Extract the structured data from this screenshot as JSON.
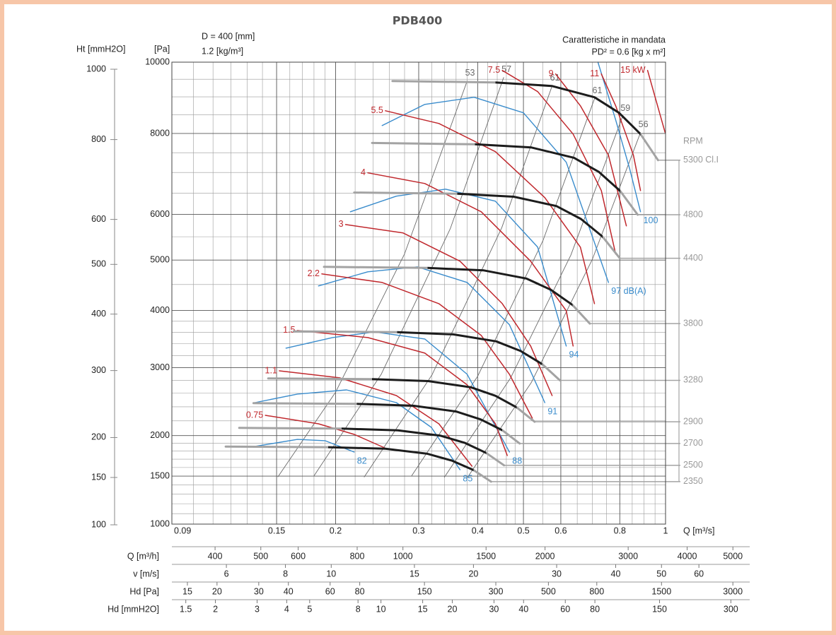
{
  "chart_data": {
    "type": "line",
    "title": "PDB400",
    "notes_left": [
      "D = 400 [mm]",
      "1.2 [kg/m³]"
    ],
    "notes_right": [
      "Caratteristiche in mandata",
      "PD² = 0.6 [kg x m²]"
    ],
    "xlabel": "Q [m³/s]",
    "ylabel": "[Pa]",
    "y2label": "Ht [mmH2O]",
    "rpm_label": "RPM",
    "xscale": "log",
    "yscale": "sqrt",
    "grid": true,
    "xlim": [
      0.09,
      1
    ],
    "ylim": [
      1000,
      10000
    ],
    "y2lim": [
      100,
      1000
    ],
    "xticks": [
      0.09,
      0.15,
      0.2,
      0.3,
      0.4,
      0.5,
      0.6,
      0.8,
      1
    ],
    "yticks": [
      1000,
      1500,
      2000,
      3000,
      4000,
      5000,
      6000,
      8000,
      10000
    ],
    "y2ticks": [
      100,
      150,
      200,
      300,
      400,
      500,
      600,
      800,
      1000
    ],
    "xgrid": [
      0.1,
      0.11,
      0.12,
      0.13,
      0.14,
      0.16,
      0.17,
      0.18,
      0.19,
      0.22,
      0.24,
      0.26,
      0.28,
      0.32,
      0.34,
      0.36,
      0.38,
      0.42,
      0.44,
      0.46,
      0.48,
      0.55,
      0.65,
      0.7,
      0.75,
      0.85,
      0.9,
      0.95
    ],
    "ygrid": [
      1100,
      1200,
      1300,
      1400,
      1600,
      1700,
      1800,
      1900,
      2200,
      2400,
      2600,
      2800,
      3200,
      3400,
      3600,
      3800,
      4500,
      5500,
      6500,
      7000,
      7500,
      8500,
      9000,
      9500
    ],
    "fan_curves": [
      {
        "name": "5300 Cl.I",
        "x": [
          0.264,
          0.436,
          0.574,
          0.707,
          0.797,
          0.885,
          0.964
        ],
        "values": [
          9450,
          9409,
          9307,
          8987,
          8556,
          7985,
          7309
        ]
      },
      {
        "name": "4800",
        "x": [
          0.239,
          0.395,
          0.52,
          0.64,
          0.722,
          0.802,
          0.873
        ],
        "values": [
          7750,
          7716,
          7633,
          7370,
          7017,
          6548,
          5994
        ]
      },
      {
        "name": "4400",
        "x": [
          0.219,
          0.362,
          0.477,
          0.587,
          0.662,
          0.735,
          0.8
        ],
        "values": [
          6513,
          6485,
          6414,
          6194,
          5897,
          5503,
          5037
        ]
      },
      {
        "name": "3800",
        "x": [
          0.189,
          0.313,
          0.412,
          0.507,
          0.571,
          0.635,
          0.691
        ],
        "values": [
          4858,
          4837,
          4785,
          4620,
          4399,
          4105,
          3758
        ]
      },
      {
        "name": "3280",
        "x": [
          0.163,
          0.27,
          0.355,
          0.438,
          0.493,
          0.548,
          0.597
        ],
        "values": [
          3619,
          3604,
          3565,
          3442,
          3277,
          3058,
          2799
        ]
      },
      {
        "name": "2900",
        "x": [
          0.144,
          0.239,
          0.314,
          0.387,
          0.436,
          0.484,
          0.528
        ],
        "values": [
          2829,
          2817,
          2787,
          2691,
          2562,
          2391,
          2188
        ]
      },
      {
        "name": "2700",
        "x": [
          0.134,
          0.222,
          0.292,
          0.36,
          0.406,
          0.451,
          0.491
        ],
        "values": [
          2452,
          2442,
          2415,
          2332,
          2220,
          2072,
          1897
        ]
      },
      {
        "name": "2500",
        "x": [
          0.125,
          0.206,
          0.271,
          0.333,
          0.376,
          0.417,
          0.455
        ],
        "values": [
          2103,
          2094,
          2071,
          2000,
          1904,
          1777,
          1626
        ]
      },
      {
        "name": "2350",
        "x": [
          0.117,
          0.193,
          0.255,
          0.313,
          0.353,
          0.392,
          0.427
        ],
        "values": [
          1858,
          1850,
          1830,
          1767,
          1682,
          1570,
          1437
        ]
      }
    ],
    "fan_curve_colors": [
      "#a3a3a3",
      "#1c1c1c"
    ],
    "power_color": "#c0282d",
    "power_curves": [
      {
        "name": "0.75",
        "x": [
          0.142,
          0.184,
          0.219,
          0.254
        ],
        "values": [
          2278,
          2159,
          2016,
          1842
        ]
      },
      {
        "name": "1.1",
        "x": [
          0.152,
          0.204,
          0.269,
          0.331,
          0.389
        ],
        "values": [
          2950,
          2838,
          2566,
          2159,
          1616
        ]
      },
      {
        "name": "1.5",
        "x": [
          0.166,
          0.234,
          0.309,
          0.38,
          0.436,
          0.462
        ],
        "values": [
          3634,
          3509,
          3241,
          2728,
          2159,
          1745
        ]
      },
      {
        "name": "2.2",
        "x": [
          0.187,
          0.251,
          0.331,
          0.407,
          0.467,
          0.522
        ],
        "values": [
          4713,
          4542,
          4129,
          3546,
          2894,
          2238
        ]
      },
      {
        "name": "3",
        "x": [
          0.21,
          0.278,
          0.367,
          0.451,
          0.518,
          0.575
        ],
        "values": [
          5771,
          5583,
          4975,
          4129,
          3362,
          2566
        ]
      },
      {
        "name": "4",
        "x": [
          0.234,
          0.309,
          0.407,
          0.518,
          0.616,
          0.637
        ],
        "values": [
          6992,
          6731,
          6061,
          4975,
          3995,
          3362
        ]
      },
      {
        "name": "5.5",
        "x": [
          0.255,
          0.331,
          0.436,
          0.555,
          0.66,
          0.707
        ],
        "values": [
          8614,
          8268,
          7526,
          6392,
          5274,
          4129
        ]
      },
      {
        "name": "7.5",
        "x": [
          0.451,
          0.536,
          0.637,
          0.731,
          0.784
        ],
        "values": [
          9756,
          9147,
          7985,
          6560,
          5124
        ]
      },
      {
        "name": "9",
        "x": [
          0.585,
          0.66,
          0.757,
          0.826
        ],
        "values": [
          9653,
          8750,
          7434,
          5740
        ]
      },
      {
        "name": "11",
        "x": [
          0.731,
          0.784,
          0.855,
          0.885
        ],
        "values": [
          9653,
          8750,
          7434,
          6560
        ]
      },
      {
        "name": "15 kW",
        "x": [
          0.916,
          0.998
        ],
        "values": [
          9756,
          8023
        ]
      }
    ],
    "noise_color": "#3a8ccc",
    "noise_curves": [
      {
        "name": "82",
        "x": [
          0.135,
          0.166,
          0.19,
          0.219
        ],
        "values": [
          1860,
          1950,
          1933,
          1788
        ]
      },
      {
        "name": "85",
        "x": [
          0.135,
          0.166,
          0.211,
          0.269,
          0.319,
          0.367
        ],
        "values": [
          2461,
          2588,
          2651,
          2461,
          2111,
          1574
        ]
      },
      {
        "name": "88",
        "x": [
          0.157,
          0.197,
          0.242,
          0.309,
          0.38,
          0.467
        ],
        "values": [
          3326,
          3509,
          3608,
          3484,
          2894,
          1788
        ]
      },
      {
        "name": "91",
        "x": [
          0.184,
          0.234,
          0.298,
          0.38,
          0.467,
          0.555
        ],
        "values": [
          4472,
          4756,
          4858,
          4542,
          3736,
          2461
        ]
      },
      {
        "name": "94",
        "x": [
          0.215,
          0.269,
          0.342,
          0.436,
          0.536,
          0.616
        ],
        "values": [
          6061,
          6426,
          6593,
          6308,
          5274,
          3362
        ]
      },
      {
        "name": "97 dB(A)",
        "x": [
          0.251,
          0.309,
          0.393,
          0.5,
          0.616,
          0.757
        ],
        "values": [
          8212,
          8789,
          8987,
          8556,
          7256,
          4542
        ]
      },
      {
        "name": "100",
        "x": [
          0.719,
          0.784,
          0.84,
          0.885
        ],
        "values": [
          10000,
          8363,
          7078,
          6061
        ]
      }
    ],
    "efficiency_color": "#6a6a6a",
    "efficiency_curves": [
      {
        "name": "53",
        "x": [
          0.151,
          0.2,
          0.28,
          0.38
        ],
        "values": [
          1492,
          2617,
          5130,
          9450
        ]
      },
      {
        "name": "57",
        "x": [
          0.18,
          0.25,
          0.35,
          0.454
        ],
        "values": [
          1502,
          2897,
          5680,
          9551
        ]
      },
      {
        "name": "61",
        "x": [
          0.23,
          0.32,
          0.45,
          0.575
        ],
        "values": [
          1490,
          2883,
          5702,
          9307
        ]
      },
      {
        "name": "61",
        "x": [
          0.29,
          0.4,
          0.55,
          0.707
        ],
        "values": [
          1505,
          2864,
          5415,
          8947
        ]
      },
      {
        "name": "59",
        "x": [
          0.34,
          0.47,
          0.63,
          0.811
        ],
        "values": [
          1487,
          2841,
          5103,
          8460
        ]
      },
      {
        "name": "56",
        "x": [
          0.38,
          0.52,
          0.7,
          0.885
        ],
        "values": [
          1479,
          2769,
          5018,
          8023
        ]
      }
    ],
    "secondary_x_scales": [
      {
        "label": "Q [m³/h]",
        "xlim": [
          324,
          3600
        ],
        "ticks": [
          400,
          500,
          600,
          800,
          1000,
          1500,
          2000,
          3000,
          4000,
          5000
        ]
      },
      {
        "label": "v [m/s]",
        "xlim": [
          4.6,
          51
        ],
        "ticks": [
          6,
          8,
          10,
          15,
          20,
          30,
          40,
          50,
          60
        ]
      },
      {
        "label": "Hd [Pa]",
        "xlim": [
          12.9,
          1560
        ],
        "ticks": [
          15,
          20,
          30,
          40,
          60,
          80,
          150,
          300,
          500,
          800,
          1500,
          3000
        ]
      },
      {
        "label": "Hd [mmH2O]",
        "xlim": [
          1.31,
          159
        ],
        "ticks": [
          1.5,
          2,
          3,
          4,
          5,
          8,
          10,
          15,
          20,
          30,
          40,
          60,
          80,
          150,
          300
        ]
      }
    ]
  }
}
